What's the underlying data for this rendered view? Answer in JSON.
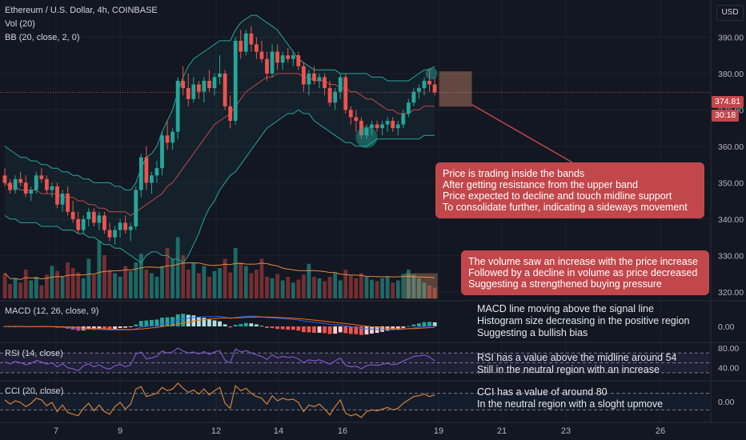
{
  "header": {
    "symbol_line": "Ethereum / U.S. Dollar, 4h, COINBASE",
    "vol_line": "Vol (20)",
    "bb_line": "BB (20, close, 2, 0)",
    "currency": "USD"
  },
  "price_tags": {
    "last": "374.81",
    "countdown": "30:18"
  },
  "panes": {
    "macd_label": "MACD (12, 26, close, 9)",
    "rsi_label": "RSI (14, close)",
    "cci_label": "CCI (20, close)"
  },
  "notes": {
    "bands": {
      "line1": "Price is trading inside the bands",
      "line2": "After getting resistance from the upper band",
      "line3": "Price expected to decline and touch midline support",
      "line4": "To consolidate further, indicating a sideways movement"
    },
    "volume": {
      "line1": "The volume saw an increase with the price increase",
      "line2": "Followed by a decline in volume as price decreased",
      "line3": "Suggesting a strengthened buying pressure"
    },
    "macd": {
      "line1": "MACD line moving above the signal line",
      "line2": "Histogram size decreasing in the positive region",
      "line3": "Suggesting a bullish bias"
    },
    "rsi": {
      "line1": "RSI has a value above the midline around 54",
      "line2": "Still in the neutral region with an increase"
    },
    "cci": {
      "line1": "CCI has a value of around 80",
      "line2": "In the neutral region with a sloght upmove"
    }
  },
  "colors": {
    "background": "#131722",
    "up": "#26a69a",
    "down": "#ef5350",
    "bb_band": "#26a69a",
    "bb_basis": "#c2474b",
    "macd": "#2962ff",
    "signal": "#ff6d00",
    "rsi": "#7e57c2",
    "cci": "#d4803a",
    "annotation": "#c2474b"
  },
  "chart_data": {
    "type": "candlestick",
    "x_tick_labels": [
      "7",
      "9",
      "12",
      "14",
      "16",
      "19",
      "21",
      "23",
      "26"
    ],
    "price_axis": {
      "ticks": [
        "320.00",
        "330.00",
        "340.00",
        "350.00",
        "360.00",
        "370.00",
        "380.00",
        "390.00"
      ],
      "range": [
        318,
        398
      ]
    },
    "macd_axis": {
      "ticks": [
        "0.00"
      ]
    },
    "rsi_axis": {
      "ticks": [
        "80.00",
        "40.00"
      ],
      "levels": [
        70,
        50,
        30
      ]
    },
    "cci_axis": {
      "ticks": [
        "0.00"
      ],
      "levels": [
        100,
        -100
      ]
    },
    "ohlc": [
      [
        352,
        354,
        349,
        350
      ],
      [
        350,
        351,
        347,
        348
      ],
      [
        348,
        352,
        347,
        351
      ],
      [
        351,
        353,
        349,
        350
      ],
      [
        350,
        352,
        346,
        347
      ],
      [
        347,
        349,
        345,
        348
      ],
      [
        348,
        353,
        347,
        352
      ],
      [
        352,
        354,
        350,
        351
      ],
      [
        351,
        352,
        347,
        348
      ],
      [
        348,
        350,
        346,
        349
      ],
      [
        349,
        350,
        343,
        344
      ],
      [
        344,
        348,
        342,
        347
      ],
      [
        347,
        349,
        341,
        342
      ],
      [
        342,
        345,
        339,
        340
      ],
      [
        340,
        342,
        336,
        337
      ],
      [
        337,
        341,
        336,
        340
      ],
      [
        340,
        343,
        338,
        342
      ],
      [
        342,
        343,
        338,
        339
      ],
      [
        339,
        342,
        337,
        341
      ],
      [
        341,
        342,
        336,
        337
      ],
      [
        337,
        339,
        334,
        335
      ],
      [
        335,
        338,
        333,
        337
      ],
      [
        337,
        340,
        335,
        339
      ],
      [
        339,
        341,
        336,
        337
      ],
      [
        337,
        339,
        334,
        338
      ],
      [
        338,
        349,
        337,
        348
      ],
      [
        348,
        358,
        346,
        357
      ],
      [
        357,
        360,
        348,
        350
      ],
      [
        350,
        353,
        347,
        352
      ],
      [
        352,
        356,
        350,
        354
      ],
      [
        354,
        364,
        352,
        363
      ],
      [
        363,
        367,
        359,
        361
      ],
      [
        361,
        365,
        359,
        364
      ],
      [
        364,
        379,
        362,
        378
      ],
      [
        378,
        382,
        374,
        376
      ],
      [
        376,
        380,
        371,
        373
      ],
      [
        373,
        379,
        372,
        377
      ],
      [
        377,
        378,
        373,
        375
      ],
      [
        375,
        379,
        372,
        378
      ],
      [
        378,
        381,
        375,
        376
      ],
      [
        376,
        380,
        374,
        379
      ],
      [
        379,
        385,
        377,
        380
      ],
      [
        380,
        381,
        370,
        371
      ],
      [
        371,
        374,
        365,
        367
      ],
      [
        367,
        390,
        366,
        389
      ],
      [
        389,
        392,
        384,
        386
      ],
      [
        386,
        392,
        385,
        391
      ],
      [
        391,
        393,
        386,
        388
      ],
      [
        388,
        390,
        384,
        386
      ],
      [
        386,
        389,
        383,
        384
      ],
      [
        384,
        386,
        378,
        380
      ],
      [
        380,
        388,
        379,
        386
      ],
      [
        386,
        388,
        381,
        383
      ],
      [
        383,
        386,
        381,
        385
      ],
      [
        385,
        387,
        383,
        384
      ],
      [
        384,
        386,
        382,
        385
      ],
      [
        385,
        386,
        381,
        382
      ],
      [
        382,
        383,
        375,
        377
      ],
      [
        377,
        381,
        374,
        380
      ],
      [
        380,
        382,
        377,
        378
      ],
      [
        378,
        380,
        376,
        379
      ],
      [
        379,
        380,
        374,
        376
      ],
      [
        376,
        378,
        371,
        372
      ],
      [
        372,
        376,
        370,
        375
      ],
      [
        375,
        380,
        373,
        379
      ],
      [
        379,
        380,
        369,
        370
      ],
      [
        370,
        371,
        366,
        368
      ],
      [
        368,
        370,
        364,
        367
      ],
      [
        367,
        368,
        362,
        363
      ],
      [
        363,
        366,
        362,
        365
      ],
      [
        365,
        367,
        363,
        366
      ],
      [
        366,
        367,
        364,
        365
      ],
      [
        365,
        367,
        363,
        366
      ],
      [
        366,
        368,
        364,
        367
      ],
      [
        367,
        368,
        364,
        365
      ],
      [
        365,
        367,
        363,
        366
      ],
      [
        366,
        370,
        365,
        369
      ],
      [
        369,
        373,
        368,
        372
      ],
      [
        372,
        376,
        371,
        375
      ],
      [
        375,
        377,
        373,
        376
      ],
      [
        376,
        379,
        374,
        378
      ],
      [
        378,
        381,
        375,
        377
      ],
      [
        377,
        379,
        374,
        374.81
      ]
    ],
    "volume": [
      0.35,
      0.2,
      0.28,
      0.22,
      0.4,
      0.25,
      0.3,
      0.18,
      0.33,
      0.45,
      0.38,
      0.3,
      0.5,
      0.42,
      0.36,
      0.28,
      0.55,
      0.33,
      0.8,
      0.6,
      0.4,
      0.35,
      0.3,
      0.45,
      0.38,
      0.5,
      0.62,
      0.4,
      0.35,
      0.3,
      0.45,
      0.7,
      0.55,
      0.85,
      0.6,
      0.4,
      0.5,
      0.35,
      0.45,
      0.3,
      0.38,
      0.42,
      0.55,
      0.36,
      0.7,
      0.5,
      0.45,
      0.35,
      0.4,
      0.55,
      0.3,
      0.28,
      0.34,
      0.25,
      0.3,
      0.22,
      0.26,
      0.33,
      0.48,
      0.3,
      0.28,
      0.24,
      0.3,
      0.36,
      0.25,
      0.4,
      0.32,
      0.28,
      0.35,
      0.3,
      0.26,
      0.24,
      0.28,
      0.3,
      0.22,
      0.25,
      0.34,
      0.4,
      0.33,
      0.28,
      0.22,
      0.18,
      0.15
    ],
    "bb_upper": [
      360,
      359,
      358,
      357,
      357,
      356,
      356,
      355,
      355,
      354,
      354,
      353,
      353,
      352,
      352,
      351,
      351,
      350,
      350,
      350,
      350,
      349,
      349,
      348,
      348,
      350,
      354,
      357,
      358,
      360,
      364,
      367,
      370,
      375,
      379,
      382,
      384,
      385,
      386,
      387,
      388,
      389,
      389,
      389,
      392,
      394,
      395,
      396,
      396,
      395,
      394,
      393,
      392,
      390,
      388,
      386,
      384,
      383,
      382,
      381,
      381,
      381,
      381,
      381,
      380,
      380,
      380,
      380,
      380,
      380,
      379,
      379,
      379,
      378,
      378,
      378,
      378,
      378,
      379,
      380,
      381,
      381,
      382
    ],
    "bb_basis": [
      350,
      349,
      349,
      348,
      348,
      348,
      348,
      347,
      347,
      347,
      347,
      346,
      346,
      346,
      345,
      345,
      344,
      344,
      343,
      343,
      342,
      342,
      342,
      342,
      341,
      342,
      343,
      344,
      345,
      346,
      347,
      349,
      350,
      352,
      354,
      356,
      358,
      360,
      362,
      364,
      366,
      367,
      368,
      369,
      371,
      373,
      375,
      376,
      377,
      378,
      379,
      379,
      380,
      380,
      380,
      380,
      380,
      379,
      379,
      378,
      378,
      378,
      377,
      377,
      376,
      376,
      375,
      375,
      374,
      373,
      373,
      372,
      371,
      370,
      370,
      369,
      369,
      369,
      370,
      370,
      371,
      371,
      371
    ],
    "bb_lower": [
      341,
      340,
      340,
      339,
      339,
      339,
      339,
      338,
      338,
      338,
      338,
      337,
      337,
      337,
      336,
      336,
      335,
      335,
      334,
      333,
      333,
      332,
      332,
      331,
      330,
      329,
      328,
      330,
      331,
      331,
      330,
      330,
      329,
      329,
      328,
      330,
      333,
      336,
      340,
      343,
      345,
      348,
      350,
      352,
      353,
      355,
      357,
      359,
      361,
      363,
      365,
      366,
      367,
      368,
      369,
      369,
      370,
      369,
      369,
      367,
      366,
      365,
      364,
      363,
      362,
      361,
      361,
      360,
      360,
      360,
      361,
      362,
      362,
      362,
      362,
      362,
      362,
      362,
      362,
      362,
      363,
      363,
      363
    ],
    "rsi_values": [
      52,
      48,
      53,
      50,
      46,
      49,
      55,
      52,
      47,
      50,
      42,
      48,
      40,
      38,
      34,
      44,
      48,
      42,
      46,
      40,
      37,
      44,
      47,
      42,
      46,
      68,
      72,
      58,
      60,
      63,
      74,
      70,
      72,
      80,
      74,
      70,
      72,
      68,
      73,
      67,
      72,
      75,
      55,
      50,
      78,
      72,
      75,
      70,
      66,
      63,
      57,
      66,
      60,
      63,
      61,
      62,
      58,
      50,
      56,
      54,
      56,
      52,
      47,
      54,
      60,
      45,
      42,
      43,
      38,
      44,
      46,
      45,
      47,
      49,
      46,
      48,
      54,
      58,
      63,
      64,
      66,
      62,
      54
    ],
    "cci_values": [
      20,
      -30,
      10,
      -10,
      -60,
      -20,
      40,
      20,
      -50,
      -10,
      -120,
      -40,
      -130,
      -150,
      -170,
      -80,
      -20,
      -110,
      -40,
      -120,
      -150,
      -60,
      -10,
      -90,
      -30,
      150,
      180,
      60,
      80,
      100,
      170,
      130,
      150,
      220,
      160,
      110,
      140,
      90,
      150,
      80,
      130,
      170,
      -20,
      -80,
      190,
      130,
      160,
      100,
      60,
      40,
      -30,
      70,
      10,
      40,
      20,
      30,
      -10,
      -120,
      -40,
      -60,
      -30,
      -90,
      -160,
      -60,
      20,
      -140,
      -170,
      -150,
      -190,
      -120,
      -100,
      -110,
      -90,
      -70,
      -100,
      -80,
      -20,
      20,
      60,
      70,
      90,
      60,
      80
    ],
    "macd_hist_profile": "negative early, rising to a large positive hump in the middle, fading negative around 15-17, small positive at the end"
  }
}
